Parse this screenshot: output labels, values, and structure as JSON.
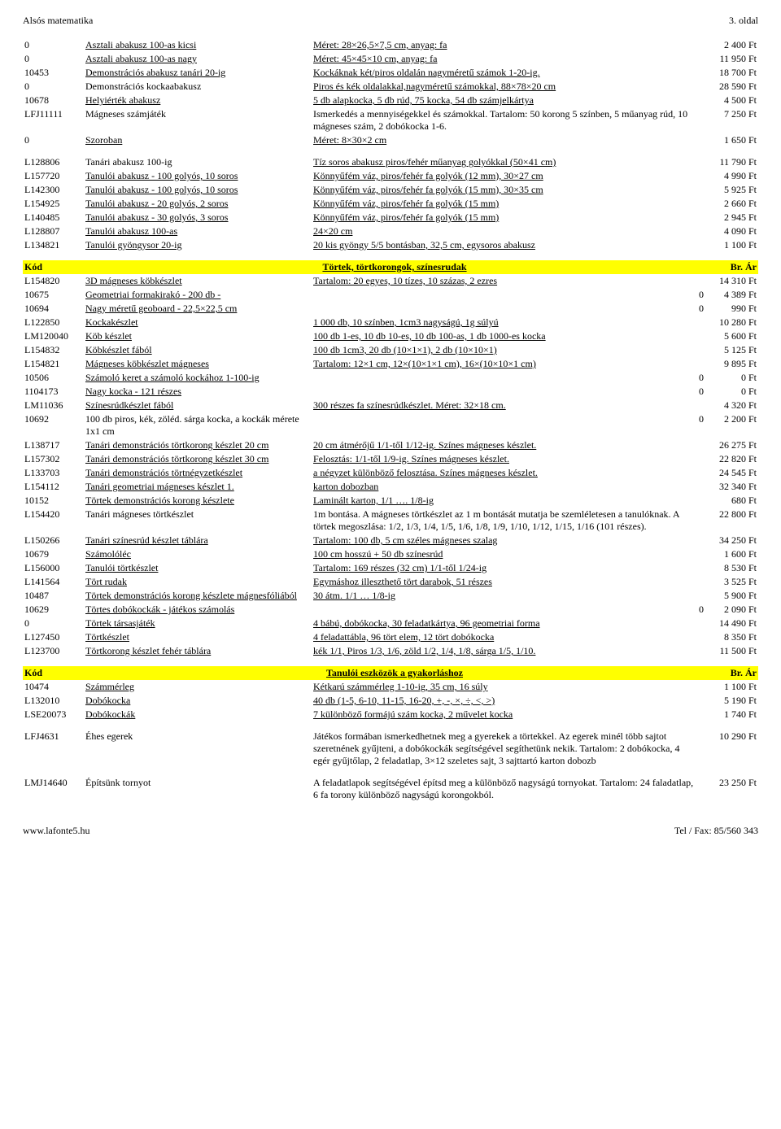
{
  "header": {
    "left": "Alsós matematika",
    "right": "3. oldal"
  },
  "footer": {
    "left": "www.lafonte5.hu",
    "right": "Tel / Fax: 85/560 343"
  },
  "sections": [
    {
      "header": null,
      "rows": [
        {
          "code": "0",
          "name": "Asztali abakusz 100-as kicsi",
          "desc": "Méret: 28×26,5×7,5 cm, anyag: fa",
          "zero": "",
          "price": "2 400 Ft"
        },
        {
          "code": "0",
          "name": "Asztali abakusz 100-as nagy",
          "desc": "Méret: 45×45×10 cm, anyag: fa",
          "zero": "",
          "price": "11 950 Ft"
        },
        {
          "code": "10453",
          "name": "Demonstrációs abakusz tanári 20-ig",
          "desc": "Kockáknak két/piros oldalán nagyméretű számok 1-20-ig.",
          "zero": "",
          "price": "18 700 Ft"
        },
        {
          "code": "0",
          "name": "Demonstrációs kockaabakusz",
          "desc": "Piros és kék oldalakkal,nagyméretű számokkal, 88×78×20 cm",
          "zero": "",
          "price": "28 590 Ft",
          "nl2": true
        },
        {
          "code": "10678",
          "name": "Helyiérték abakusz",
          "desc": "5 db alapkocka, 5 db rúd, 75 kocka, 54 db számjelkártya",
          "zero": "",
          "price": "4 500 Ft"
        },
        {
          "code": "LFJ11111",
          "name": "Mágneses számjáték",
          "desc": "Ismerkedés a mennyiségekkel és számokkal. Tartalom: 50 korong 5 színben, 5 műanyag rúd, 10 mágneses szám, 2 dobókocka 1-6.",
          "zero": "",
          "price": "7 250 Ft",
          "nl2": true,
          "plain": true
        },
        {
          "code": "0",
          "name": "Szoroban",
          "desc": "Méret: 8×30×2 cm",
          "zero": "",
          "price": "1 650 Ft"
        }
      ]
    },
    {
      "header": null,
      "gapBefore": true,
      "rows": [
        {
          "code": "L128806",
          "name": "Tanári abakusz 100-ig",
          "desc": "Tíz soros abakusz piros/fehér műanyag golyókkal (50×41 cm)",
          "zero": "",
          "price": "11 790 Ft",
          "nl2": true
        },
        {
          "code": "L157720",
          "name": "Tanulói abakusz - 100 golyós, 10 soros",
          "desc": "Könnyűfém váz, piros/fehér fa golyók (12 mm), 30×27 cm",
          "zero": "",
          "price": "4 990 Ft"
        },
        {
          "code": "L142300",
          "name": "Tanulói abakusz - 100 golyós, 10 soros",
          "desc": "Könnyűfém váz, piros/fehér fa golyók (15 mm), 30×35 cm",
          "zero": "",
          "price": "5 925 Ft"
        },
        {
          "code": "L154925",
          "name": "Tanulói abakusz - 20 golyós, 2 soros",
          "desc": "Könnyűfém váz, piros/fehér fa golyók (15 mm)",
          "zero": "",
          "price": "2 660 Ft"
        },
        {
          "code": "L140485",
          "name": "Tanulói abakusz - 30 golyós, 3 soros",
          "desc": "Könnyűfém váz, piros/fehér fa golyók (15 mm)",
          "zero": "",
          "price": "2 945 Ft"
        },
        {
          "code": "L128807",
          "name": "Tanulói abakusz 100-as",
          "desc": "24×20 cm",
          "zero": "",
          "price": "4 090 Ft"
        },
        {
          "code": "L134821",
          "name": "Tanulói gyöngysor 20-ig",
          "desc": "20 kis gyöngy 5/5 bontásban, 32,5 cm, egysoros abakusz",
          "zero": "",
          "price": "1 100 Ft"
        }
      ]
    },
    {
      "header": {
        "left": "Kód",
        "mid": "Törtek, törtkorongok, színesrudak",
        "right": "Br. Ár"
      },
      "gapBefore": true,
      "rows": [
        {
          "code": "L154820",
          "name": "3D mágneses köbkészlet",
          "desc": "Tartalom: 20 egyes, 10 tízes, 10 százas, 2 ezres",
          "zero": "",
          "price": "14 310 Ft"
        },
        {
          "code": "10675",
          "name": "Geometriai formakirakó - 200 db -",
          "desc": "",
          "zero": "0",
          "price": "4 389 Ft"
        },
        {
          "code": "10694",
          "name": "Nagy méretű geoboard - 22,5×22,5 cm",
          "desc": "",
          "zero": "0",
          "price": "990 Ft"
        },
        {
          "code": "L122850",
          "name": "Kockakészlet",
          "desc": "1 000 db, 10 színben, 1cm3 nagyságú, 1g súlyú",
          "zero": "",
          "price": "10 280 Ft"
        },
        {
          "code": "LM120040",
          "name": "Köb készlet",
          "desc": "100 db 1-es, 10 db 10-es, 10 db 100-as, 1 db 1000-es kocka",
          "zero": "",
          "price": "5 600 Ft"
        },
        {
          "code": "L154832",
          "name": "Köbkészlet fából",
          "desc": "100 db 1cm3, 20 db (10×1×1), 2 db (10×10×1)",
          "zero": "",
          "price": "5 125 Ft"
        },
        {
          "code": "L154821",
          "name": "Mágneses köbkészlet mágneses",
          "desc": "Tartalom: 12×1 cm, 12×(10×1×1 cm), 16×(10×10×1 cm)",
          "zero": "",
          "price": "9 895 Ft"
        },
        {
          "code": "10506",
          "name": "Számoló keret a számoló kockához 1-100-ig",
          "desc": "",
          "zero": "0",
          "price": "0 Ft"
        },
        {
          "code": "1104173",
          "name": "Nagy kocka - 121 részes",
          "desc": "",
          "zero": "0",
          "price": "0 Ft"
        },
        {
          "code": "LM11036",
          "name": "Színesrúdkészlet fából",
          "desc": "300 részes fa színesrúdkészlet. Méret: 32×18 cm.",
          "zero": "",
          "price": "4 320 Ft"
        },
        {
          "code": "10692",
          "name": "100 db piros, kék, zöléd. sárga kocka, a kockák mérete 1x1 cm",
          "desc": "",
          "zero": "0",
          "price": "2 200 Ft",
          "nl2": true,
          "plain": true
        },
        {
          "code": "L138717",
          "name": "Tanári demonstrációs törtkorong készlet 20 cm",
          "desc": "20 cm átmérőjű 1/1-től 1/12-ig. Színes mágneses készlet.",
          "zero": "",
          "price": "26 275 Ft"
        },
        {
          "code": "L157302",
          "name": "Tanári demonstrációs törtkorong készlet 30 cm",
          "desc": "Felosztás: 1/1-től 1/9-ig. Színes mágneses készlet.",
          "zero": "",
          "price": "22 820 Ft"
        },
        {
          "code": "L133703",
          "name": "Tanári demonstrációs törtnégyzetkészlet",
          "desc": "a négyzet különböző felosztása. Színes mágneses készlet.",
          "zero": "",
          "price": "24 545 Ft"
        },
        {
          "code": "L154112",
          "name": "Tanári geometriai mágneses készlet 1.",
          "desc": "karton dobozban",
          "zero": "",
          "price": "32 340 Ft"
        },
        {
          "code": "10152",
          "name": "Törtek demonstrációs korong készlete",
          "desc": "Laminált karton, 1/1 …. 1/8-ig",
          "zero": "",
          "price": "680 Ft"
        },
        {
          "code": "L154420",
          "name": "Tanári mágneses törtkészlet",
          "desc": "1m bontása. A mágneses törtkészlet az 1 m bontását mutatja be szemléletesen a tanulóknak. A törtek megoszlása: 1/2, 1/3, 1/4, 1/5, 1/6, 1/8, 1/9, 1/10, 1/12, 1/15, 1/16 (101 részes).",
          "zero": "",
          "price": "22 800 Ft",
          "nl2": true,
          "plain": true
        },
        {
          "code": "L150266",
          "name": "Tanári színesrúd készlet táblára",
          "desc": "Tartalom: 100 db, 5 cm széles mágneses szalag",
          "zero": "",
          "price": "34 250 Ft"
        },
        {
          "code": "10679",
          "name": "Számolóléc",
          "desc": "100 cm  hosszú + 50 db színesrúd",
          "zero": "",
          "price": "1 600 Ft"
        },
        {
          "code": "L156000",
          "name": "Tanulói törtkészlet",
          "desc": "Tartalom: 169 részes (32 cm) 1/1-től 1/24-ig",
          "zero": "",
          "price": "8 530 Ft"
        },
        {
          "code": "L141564",
          "name": "Tört rudak",
          "desc": "Egymáshoz illeszthető tört darabok, 51 részes",
          "zero": "",
          "price": "3 525 Ft"
        },
        {
          "code": "10487",
          "name": "Törtek demonstrációs korong készlete mágnesfóliából",
          "desc": "30 átm. 1/1 … 1/8-ig",
          "zero": "",
          "price": "5 900 Ft"
        },
        {
          "code": "10629",
          "name": "Törtes dobókockák - játékos számolás",
          "desc": "",
          "zero": "0",
          "price": "2 090 Ft"
        },
        {
          "code": "0",
          "name": "Törtek társasjáték",
          "desc": "4 bábú, dobókocka, 30 feladatkártya, 96 geometriai forma",
          "zero": "",
          "price": "14 490 Ft"
        },
        {
          "code": "L127450",
          "name": "Törtkészlet",
          "desc": "4 feladattábla, 96 tört elem, 12 tört dobókocka",
          "zero": "",
          "price": "8 350 Ft"
        },
        {
          "code": "L123700",
          "name": "Törtkorong készlet fehér táblára",
          "desc": "kék 1/1, Piros 1/3, 1/6, zöld 1/2, 1/4, 1/8, sárga 1/5, 1/10.",
          "zero": "",
          "price": "11 500 Ft"
        }
      ]
    },
    {
      "header": {
        "left": "Kód",
        "mid": "Tanulói eszközök a gyakorláshoz",
        "right": "Br. Ár"
      },
      "gapBefore": true,
      "rows": [
        {
          "code": "10474",
          "name": "Számmérleg",
          "desc": "Kétkarú számmérleg 1-10-ig, 35 cm, 16 súly",
          "zero": "",
          "price": "1 100 Ft"
        },
        {
          "code": "L132010",
          "name": "Dobókocka",
          "desc": "40 db (1-5, 6-10, 11-15, 16-20, +, -, ×, ÷, <, >)",
          "zero": "",
          "price": "5 190 Ft"
        },
        {
          "code": "LSE20073",
          "name": "Dobókockák",
          "desc": "7 különböző formájú szám kocka, 2 művelet kocka",
          "zero": "",
          "price": "1 740 Ft"
        },
        {
          "code": "LFJ4631",
          "name": "Éhes egerek",
          "desc": "Játékos formában ismerkedhetnek meg a gyerekek a törtekkel. Az egerek minél több sajtot szeretnének gyűjteni, a dobókockák segítségével segíthetünk nekik. Tartalom: 2 dobókocka, 4 egér gyűjtőlap, 2 feladatlap, 3×12 szeletes sajt, 3 sajttartó karton dobozb",
          "zero": "",
          "price": "10 290 Ft",
          "nl2": true,
          "plain": true,
          "gapBefore": true
        },
        {
          "code": "LMJ14640",
          "name": "Építsünk tornyot",
          "desc": "A feladatlapok segítségével építsd meg a különböző nagyságú tornyokat. Tartalom: 24 faladatlap, 6 fa torony különböző nagyságú korongokból.",
          "zero": "",
          "price": "23 250 Ft",
          "nl2": true,
          "plain": true,
          "gapBefore": true
        }
      ]
    }
  ]
}
